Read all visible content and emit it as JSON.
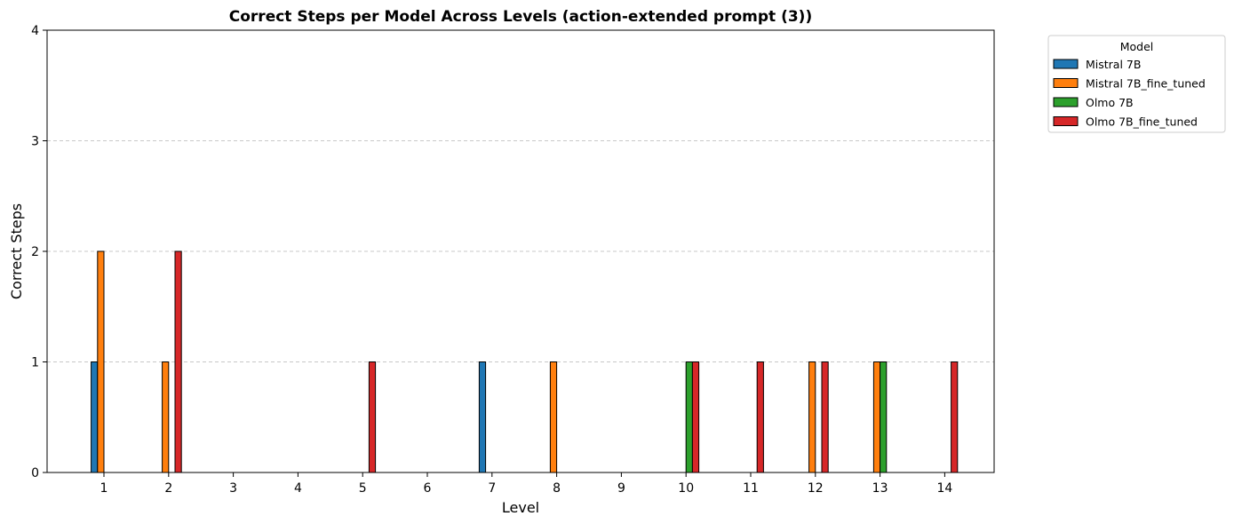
{
  "chart_data": {
    "type": "bar",
    "title": "Correct Steps per Model Across Levels (action-extended prompt (3))",
    "xlabel": "Level",
    "ylabel": "Correct Steps",
    "categories": [
      "1",
      "2",
      "3",
      "4",
      "5",
      "6",
      "7",
      "8",
      "9",
      "10",
      "11",
      "12",
      "13",
      "14"
    ],
    "ylim": [
      0,
      4
    ],
    "yticks": [
      "0",
      "1",
      "2",
      "3",
      "4"
    ],
    "grid": "y-dashed",
    "legend": {
      "title": "Model",
      "placement": "outside-top-right"
    },
    "series": [
      {
        "name": "Mistral 7B",
        "color": "#1f77b4",
        "values": [
          1,
          0,
          0,
          0,
          0,
          0,
          1,
          0,
          0,
          0,
          0,
          0,
          0,
          0
        ]
      },
      {
        "name": "Mistral 7B_fine_tuned",
        "color": "#ff7f0e",
        "values": [
          2,
          1,
          0,
          0,
          0,
          0,
          0,
          1,
          0,
          0,
          0,
          1,
          1,
          0
        ]
      },
      {
        "name": "Olmo 7B",
        "color": "#2ca02c",
        "values": [
          0,
          0,
          0,
          0,
          0,
          0,
          0,
          0,
          0,
          1,
          0,
          0,
          1,
          0
        ]
      },
      {
        "name": "Olmo 7B_fine_tuned",
        "color": "#d62728",
        "values": [
          0,
          2,
          0,
          0,
          1,
          0,
          0,
          0,
          0,
          1,
          1,
          1,
          0,
          1
        ]
      }
    ]
  }
}
